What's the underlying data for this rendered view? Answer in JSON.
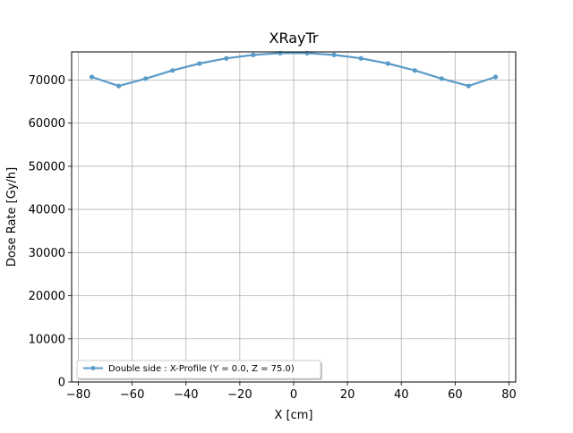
{
  "chart_data": {
    "type": "line",
    "title": "XRayTr",
    "xlabel": "X [cm]",
    "ylabel": "Dose Rate [Gy/h]",
    "xlim": [
      -82.5,
      82.5
    ],
    "ylim": [
      0,
      76500
    ],
    "xticks": [
      -80,
      -60,
      -40,
      -20,
      0,
      20,
      40,
      60,
      80
    ],
    "xtick_labels": [
      "−80",
      "−60",
      "−40",
      "−20",
      "0",
      "20",
      "40",
      "60",
      "80"
    ],
    "yticks": [
      0,
      10000,
      20000,
      30000,
      40000,
      50000,
      60000,
      70000
    ],
    "ytick_labels": [
      "0",
      "10000",
      "20000",
      "30000",
      "40000",
      "50000",
      "60000",
      "70000"
    ],
    "grid": true,
    "legend_position": "lower-left",
    "series": [
      {
        "name": "Double side : X-Profile (Y = 0.0, Z = 75.0)",
        "color": "#5a9bc8",
        "marker": "circle",
        "x": [
          -75,
          -65,
          -55,
          -45,
          -35,
          -25,
          -15,
          -5,
          5,
          15,
          25,
          35,
          45,
          55,
          65,
          75
        ],
        "y": [
          70700,
          68600,
          70300,
          72200,
          73800,
          75000,
          75800,
          76200,
          76200,
          75800,
          75000,
          73800,
          72200,
          70300,
          68600,
          70700
        ]
      }
    ]
  }
}
